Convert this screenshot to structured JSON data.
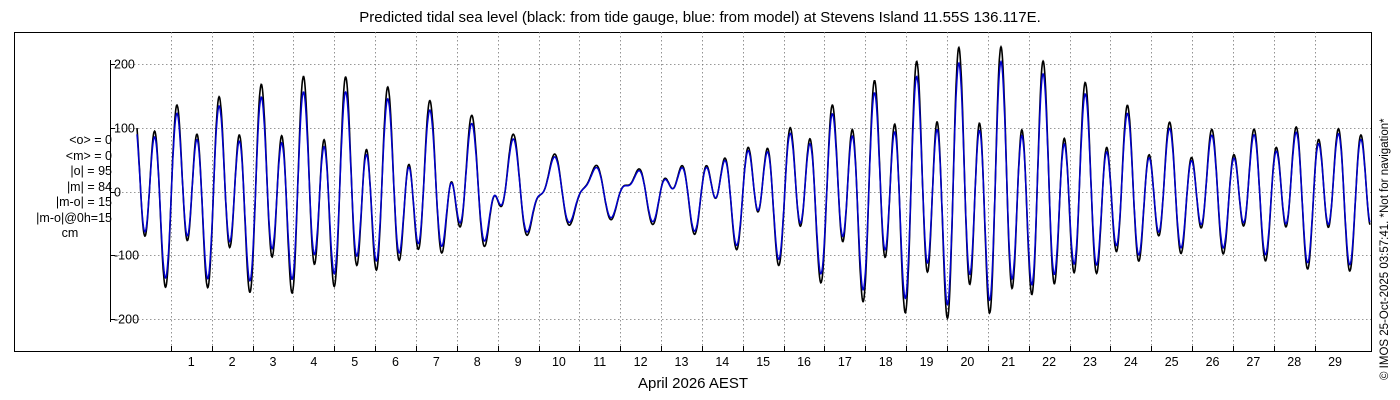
{
  "chart_data": {
    "type": "line",
    "title": "Predicted tidal sea level (black: from tide gauge, blue: from model) at Stevens Island 11.55S 136.117E.",
    "xlabel": "April 2026 AEST",
    "ylabel": "",
    "ylim": [
      -240,
      240
    ],
    "xlim": [
      0,
      30.5
    ],
    "grid": true,
    "yticks": [
      -200,
      -100,
      0,
      100,
      200
    ],
    "ytick_labels": [
      "-200",
      "-100",
      "0",
      "100",
      "200"
    ],
    "xticks": [
      1,
      2,
      3,
      4,
      5,
      6,
      7,
      8,
      9,
      10,
      11,
      12,
      13,
      14,
      15,
      16,
      17,
      18,
      19,
      20,
      21,
      22,
      23,
      24,
      25,
      26,
      27,
      28,
      29
    ],
    "xtick_labels": [
      "1",
      "2",
      "3",
      "4",
      "5",
      "6",
      "7",
      "8",
      "9",
      "10",
      "11",
      "12",
      "13",
      "14",
      "15",
      "16",
      "17",
      "18",
      "19",
      "20",
      "21",
      "22",
      "23",
      "24",
      "25",
      "26",
      "27",
      "28",
      "29"
    ],
    "series": [
      {
        "name": "black: from tide gauge",
        "color": "#000000",
        "amplitude_envelope_days": [
          0,
          1,
          2,
          3,
          4,
          5,
          6,
          7,
          8,
          9,
          10,
          11,
          12,
          13,
          14,
          15,
          16,
          17,
          18,
          19,
          20,
          21,
          22,
          23,
          24,
          25,
          26,
          27,
          28,
          29,
          30
        ],
        "amplitude_envelope_values": [
          150,
          155,
          160,
          175,
          185,
          185,
          170,
          150,
          130,
          110,
          75,
          55,
          45,
          55,
          70,
          95,
          120,
          150,
          185,
          210,
          230,
          235,
          215,
          185,
          150,
          120,
          105,
          105,
          115,
          125,
          125
        ]
      },
      {
        "name": "blue: from model",
        "color": "#0000cc",
        "amplitude_envelope_days": [
          0,
          1,
          2,
          3,
          4,
          5,
          6,
          7,
          8,
          9,
          10,
          11,
          12,
          13,
          14,
          15,
          16,
          17,
          18,
          19,
          20,
          21,
          22,
          23,
          24,
          25,
          26,
          27,
          28,
          29,
          30
        ],
        "amplitude_envelope_values": [
          135,
          140,
          145,
          155,
          160,
          160,
          150,
          135,
          115,
          100,
          70,
          50,
          42,
          50,
          65,
          88,
          110,
          135,
          165,
          185,
          205,
          210,
          195,
          165,
          135,
          110,
          95,
          95,
          105,
          115,
          115
        ]
      }
    ]
  },
  "stats": {
    "line1": "<o> = 0",
    "line2": "<m> = 0",
    "line3": "|o| = 95",
    "line4": "|m| = 84",
    "line5": "|m-o| = 15",
    "line6": "|m-o|@0h=15",
    "line7": "cm"
  },
  "credit": "© IMOS 25-Oct-2025 03:57:41. *Not for navigation*"
}
